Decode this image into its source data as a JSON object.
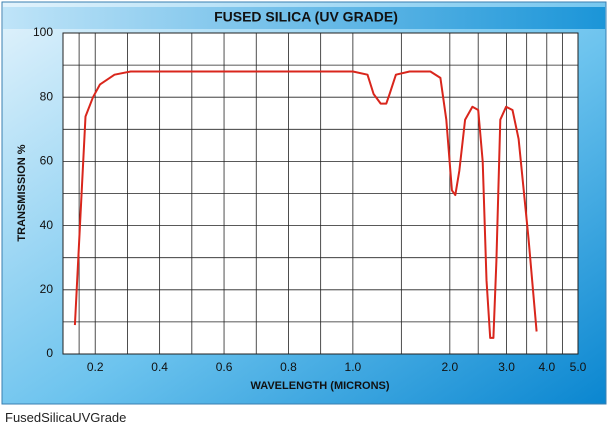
{
  "chart_data": {
    "type": "line",
    "title": "FUSED SILICA (UV GRADE)",
    "x_label": "WAVELENGTH (MICRONS)",
    "y_label": "TRANSMISSION %",
    "xscale": "linear-log",
    "x": [
      0.137,
      0.17,
      0.193,
      0.215,
      0.26,
      0.31,
      0.84,
      1.0,
      1.11,
      1.16,
      1.22,
      1.27,
      1.3,
      1.36,
      1.5,
      1.74,
      1.87,
      1.95,
      2.03,
      2.08,
      2.14,
      2.23,
      2.35,
      2.45,
      2.53,
      2.6,
      2.67,
      2.73,
      2.79,
      2.87,
      2.99,
      3.13,
      3.27,
      3.51,
      3.72
    ],
    "values": [
      9,
      74,
      80,
      84,
      87,
      88,
      88,
      88,
      87,
      81,
      78,
      78,
      81,
      87,
      88,
      88,
      86,
      73,
      51,
      49.5,
      57,
      73,
      77,
      76,
      60,
      23,
      5,
      5,
      29,
      73,
      77,
      76,
      67,
      36,
      7
    ],
    "color": "#d9261c",
    "xlim": [
      0.1,
      5
    ],
    "xticks": [
      0.2,
      0.4,
      0.6,
      0.8,
      {
        "value": 1,
        "label": "1.0"
      },
      {
        "value": 2,
        "label": "2.0"
      },
      {
        "value": 3,
        "label": "3.0"
      },
      {
        "value": 4,
        "label": "4.0"
      },
      {
        "value": 5,
        "label": "5.0"
      }
    ],
    "ylim": [
      0,
      100
    ],
    "yticks": [
      0,
      20,
      40,
      60,
      80,
      100
    ],
    "grid": true
  },
  "caption": "FusedSilicaUVGrade"
}
